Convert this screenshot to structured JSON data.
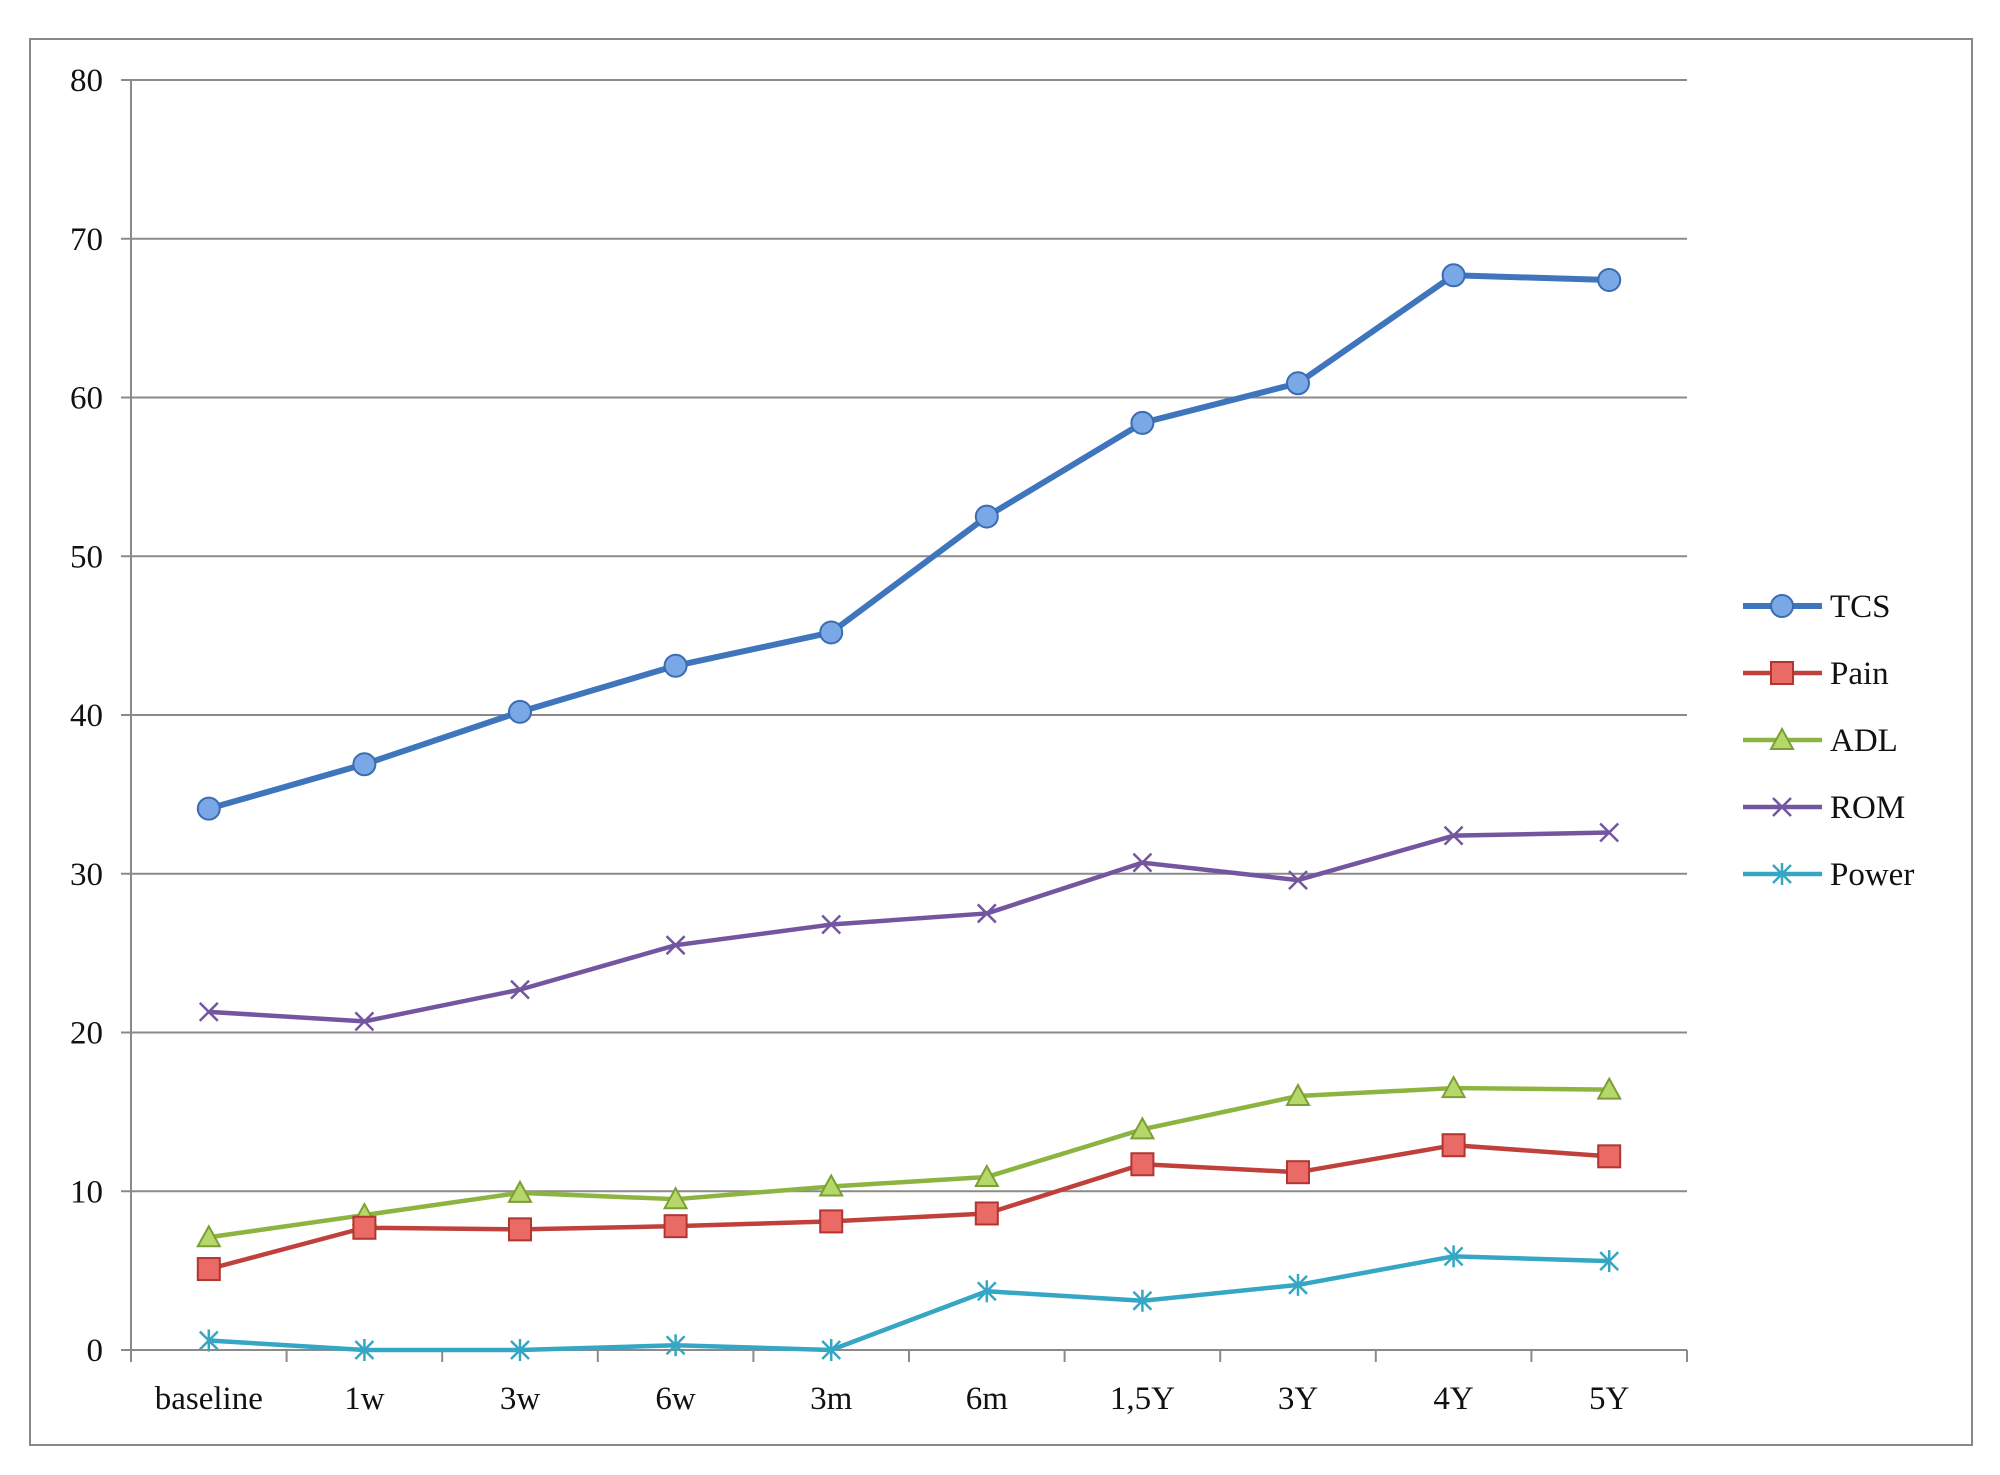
{
  "chart_data": {
    "type": "line",
    "title": "",
    "xlabel": "",
    "ylabel": "",
    "ylim": [
      0,
      80
    ],
    "yticks": [
      0,
      10,
      20,
      30,
      40,
      50,
      60,
      70,
      80
    ],
    "grid": true,
    "legend_position": "right",
    "categories": [
      "baseline",
      "1w",
      "3w",
      "6w",
      "3m",
      "6m",
      "1,5Y",
      "3Y",
      "4Y",
      "5Y"
    ],
    "series": [
      {
        "name": "TCS",
        "color": "#3f75bd",
        "marker": "circle",
        "values": [
          34.1,
          36.9,
          40.2,
          43.1,
          45.2,
          52.5,
          58.4,
          60.9,
          67.7,
          67.4
        ]
      },
      {
        "name": "Pain",
        "color": "#c0403c",
        "marker": "square",
        "values": [
          5.1,
          7.7,
          7.6,
          7.8,
          8.1,
          8.6,
          11.7,
          11.2,
          12.9,
          12.2
        ]
      },
      {
        "name": "ADL",
        "color": "#8db340",
        "marker": "triangle",
        "values": [
          7.1,
          8.5,
          9.9,
          9.5,
          10.3,
          10.9,
          13.9,
          16.0,
          16.5,
          16.4
        ]
      },
      {
        "name": "ROM",
        "color": "#7455a0",
        "marker": "x",
        "values": [
          21.3,
          20.7,
          22.7,
          25.5,
          26.8,
          27.5,
          30.7,
          29.6,
          32.4,
          32.6
        ]
      },
      {
        "name": "Power",
        "color": "#35a6c4",
        "marker": "star",
        "values": [
          0.6,
          0.0,
          0.0,
          0.3,
          0.0,
          3.7,
          3.1,
          4.1,
          5.9,
          5.6
        ]
      }
    ]
  }
}
